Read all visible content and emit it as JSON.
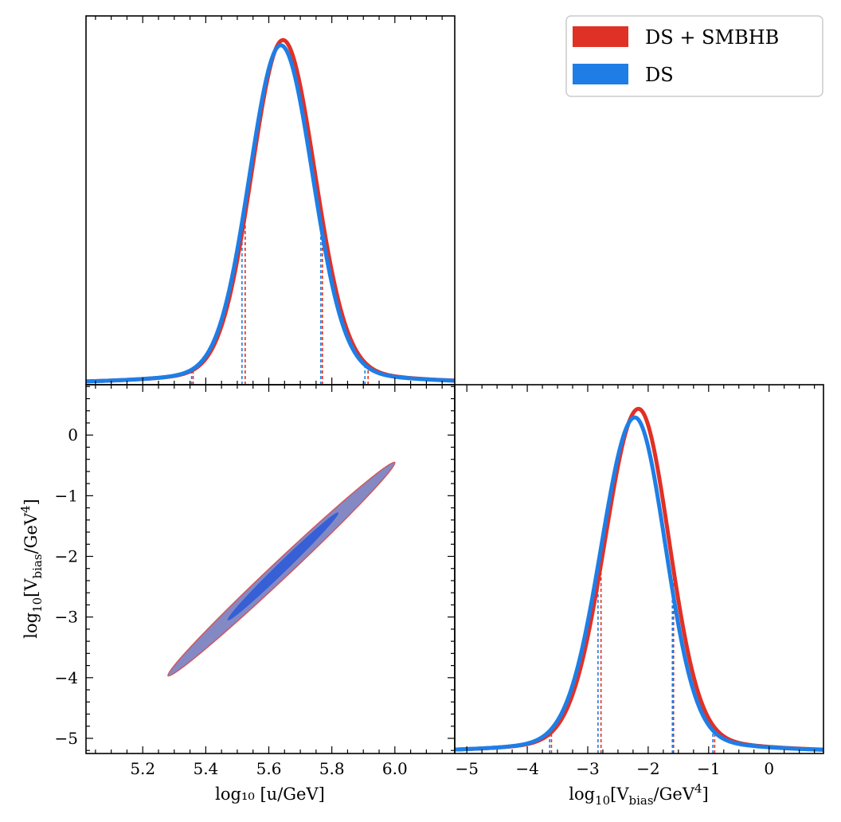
{
  "chart_data": {
    "type": "corner",
    "colors": {
      "ds_smbhb": "#e03127",
      "ds": "#1e7ee6",
      "contour_fill": "#6f74b8",
      "contour_inner": "#2f5bd8"
    },
    "legend": {
      "position": "top-right",
      "entries": [
        {
          "name": "DS + SMBHB",
          "color": "#e03127"
        },
        {
          "name": "DS",
          "color": "#1e7ee6"
        }
      ]
    },
    "panels": [
      {
        "id": "marginal-u",
        "type": "line",
        "x_param": "log10_u",
        "xlim": [
          5.02,
          6.19
        ],
        "ylim": [
          0,
          1.07
        ],
        "xticks": [
          5.2,
          5.4,
          5.6,
          5.8,
          6.0
        ],
        "series": [
          {
            "name": "DS + SMBHB",
            "mode": 5.645,
            "sigma_left": 0.098,
            "sigma_right": 0.1,
            "tail": 0.065,
            "tail_width": 0.26,
            "peak": 1.0,
            "quantile_lines": [
              5.36,
              5.525,
              5.77,
              5.915
            ]
          },
          {
            "name": "DS",
            "mode": 5.638,
            "sigma_left": 0.098,
            "sigma_right": 0.1,
            "tail": 0.065,
            "tail_width": 0.26,
            "peak": 0.985,
            "quantile_lines": [
              5.355,
              5.515,
              5.765,
              5.905
            ]
          }
        ]
      },
      {
        "id": "joint-u-vbias",
        "type": "contour",
        "xlim": [
          5.02,
          6.19
        ],
        "ylim": [
          -5.25,
          0.83
        ],
        "xticks": [
          5.2,
          5.4,
          5.6,
          5.8,
          6.0
        ],
        "xticklabels": [
          "5.2",
          "5.4",
          "5.6",
          "5.8",
          "6.0"
        ],
        "yticks": [
          0,
          -1,
          -2,
          -3,
          -4,
          -5
        ],
        "yticklabels": [
          "0",
          "−1",
          "−2",
          "−3",
          "−4",
          "−5"
        ],
        "xlabel": "log₁₀ [u/GeV]",
        "ylabel_parts": {
          "prefix": "log",
          "sub": "10",
          "open": "[V",
          "vsub": "bias",
          "mid": "/GeV",
          "sup": "4",
          "close": "]"
        },
        "contours": [
          {
            "level": "95%",
            "start": [
              5.28,
              -3.97
            ],
            "end": [
              6.0,
              -0.45
            ]
          },
          {
            "level": "68%",
            "start": [
              5.47,
              -3.05
            ],
            "end": [
              5.82,
              -1.28
            ]
          }
        ]
      },
      {
        "id": "marginal-vbias",
        "type": "line",
        "x_param": "log10_Vbias",
        "xlim": [
          -5.2,
          0.9
        ],
        "ylim": [
          0,
          1.07
        ],
        "xticks": [
          -5,
          -4,
          -3,
          -2,
          -1,
          0
        ],
        "xticklabels": [
          "−5",
          "−4",
          "−3",
          "−2",
          "−1",
          "0"
        ],
        "xlabel_parts": {
          "prefix": "log",
          "sub": "10",
          "open": "[V",
          "vsub": "bias",
          "mid": "/GeV",
          "sup": "4",
          "close": "]"
        },
        "series": [
          {
            "name": "DS + SMBHB",
            "mode": -2.16,
            "sigma_left": 0.55,
            "sigma_right": 0.5,
            "tail": 0.065,
            "tail_width": 1.4,
            "peak": 1.0,
            "quantile_lines": [
              -3.6,
              -2.78,
              -1.58,
              -0.9
            ]
          },
          {
            "name": "DS",
            "mode": -2.22,
            "sigma_left": 0.55,
            "sigma_right": 0.5,
            "tail": 0.065,
            "tail_width": 1.4,
            "peak": 0.975,
            "quantile_lines": [
              -3.63,
              -2.83,
              -1.6,
              -0.93
            ]
          }
        ]
      }
    ]
  }
}
